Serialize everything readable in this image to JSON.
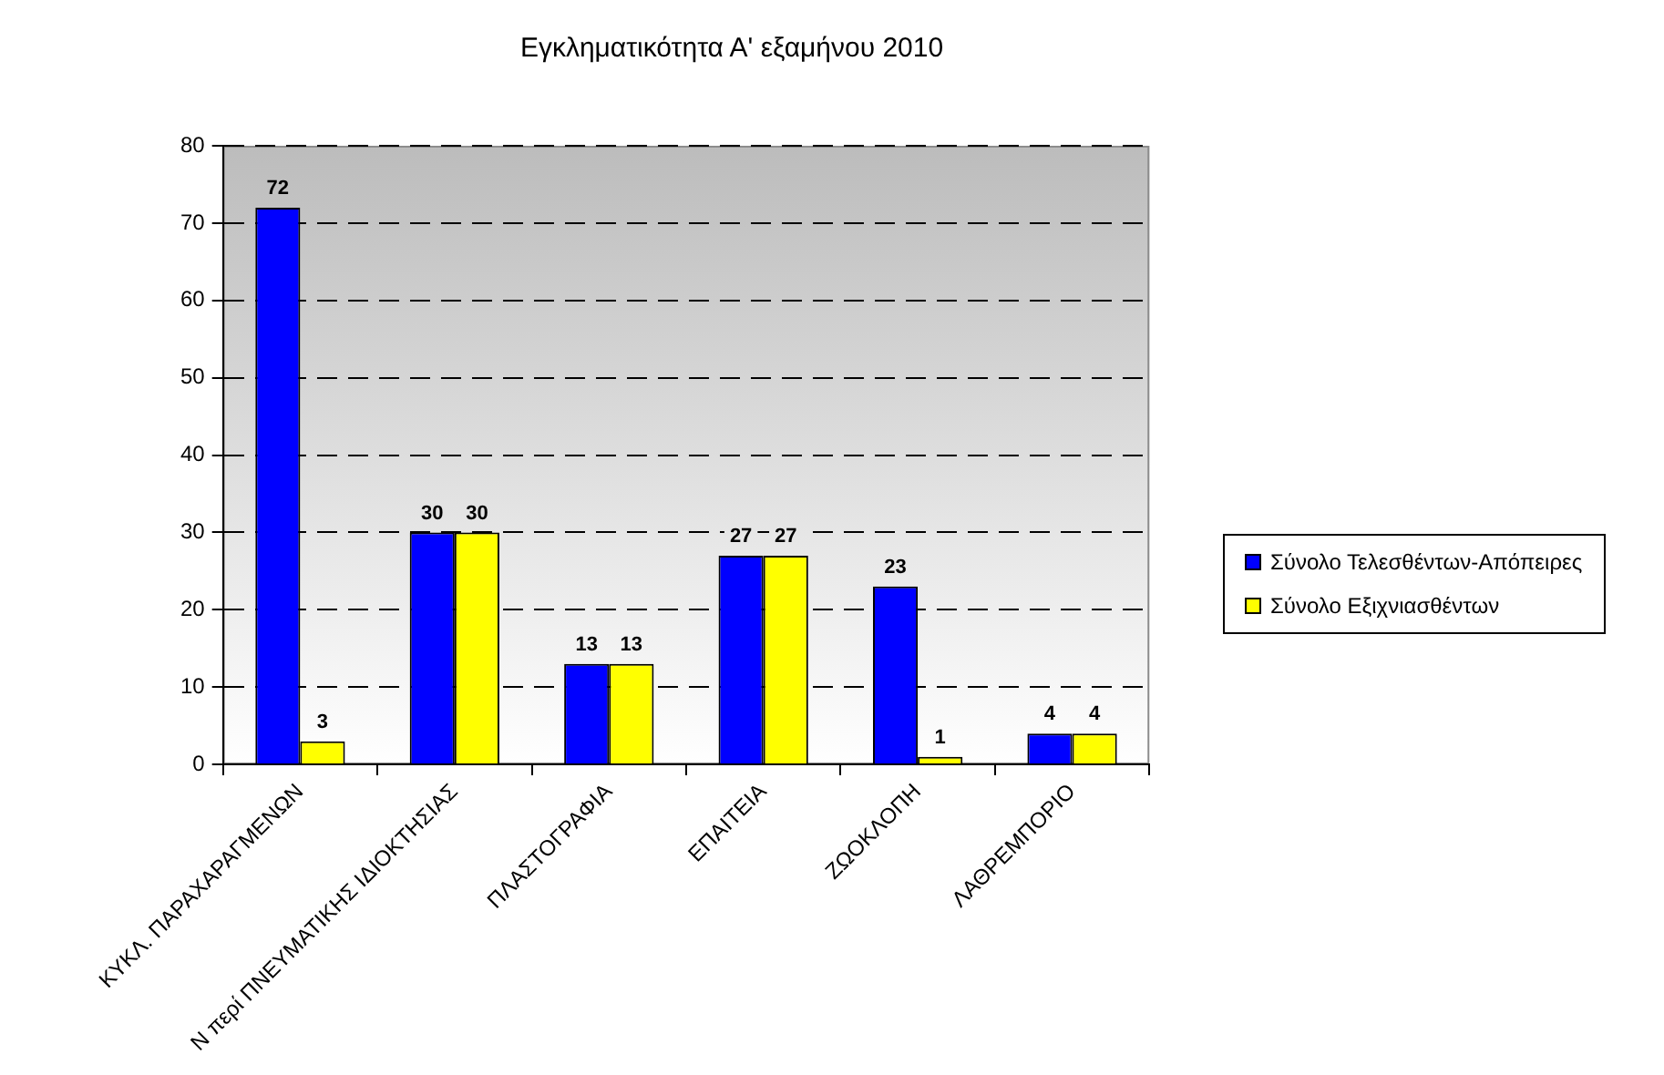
{
  "chart_data": {
    "type": "bar",
    "title": "Εγκληματικότητα Α' εξαμήνου 2010",
    "categories": [
      "ΚΥΚΛ. ΠΑΡΑΧΑΡΑΓΜΕΝΩΝ",
      "Ν περί ΠΝΕΥΜΑΤΙΚΗΣ ΙΔΙΟΚΤΗΣΙΑΣ",
      "ΠΛΑΣΤΟΓΡΑΦΙΑ",
      "ΕΠΑΙΤΕΙΑ",
      "ΖΩΟΚΛΟΠΗ",
      "ΛΑΘΡΕΜΠΟΡΙΟ"
    ],
    "series": [
      {
        "name": "Σύνολο Τελεσθέντων-Απόπειρες",
        "color": "#0000ff",
        "values": [
          72,
          30,
          13,
          27,
          23,
          4
        ]
      },
      {
        "name": "Σύνολο Εξιχνιασθέντων",
        "color": "#ffff00",
        "values": [
          3,
          30,
          13,
          27,
          1,
          4
        ]
      }
    ],
    "ylim": [
      0,
      80
    ],
    "yticks": [
      0,
      10,
      20,
      30,
      40,
      50,
      60,
      70,
      80
    ],
    "grid": "y",
    "legend": "right",
    "data_labels": true
  }
}
